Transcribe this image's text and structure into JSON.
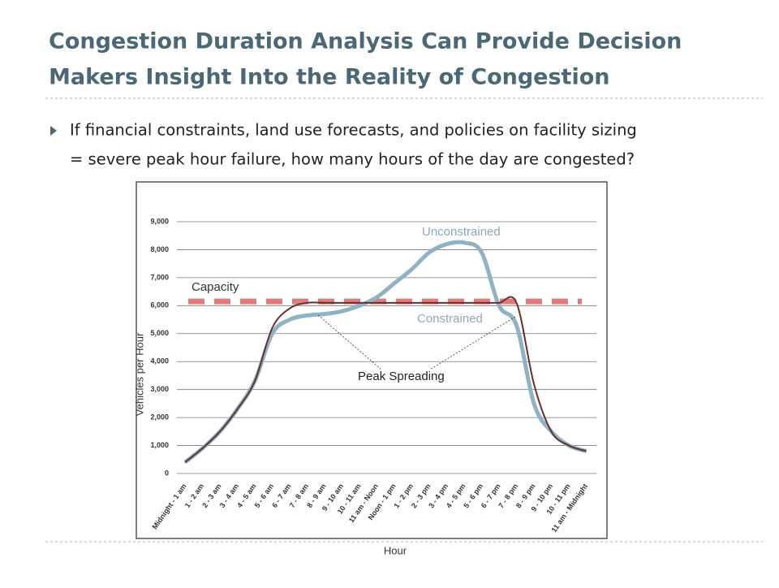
{
  "slide": {
    "title_lines": [
      "Congestion Duration Analysis Can Provide Decision",
      "Makers Insight Into the Reality of Congestion"
    ],
    "bullet_lines": [
      "If financial constraints, land use forecasts, and policies on facility sizing",
      "= severe peak hour failure, how many hours of the day are congested?"
    ]
  },
  "chart_data": {
    "type": "line",
    "x_label": "Hour",
    "y_label": "Vehicles per Hour",
    "categories": [
      "Midnight - 1 am",
      "1 - 2 am",
      "2 - 3 am",
      "3 - 4 am",
      "4 - 5 am",
      "5 - 6 am",
      "6 - 7 am",
      "7 - 8 am",
      "8 - 9 am",
      "9 - 10 am",
      "10 - 11 am",
      "11 am - Noon",
      "Noon - 1 pm",
      "1 - 2 pm",
      "2 - 3 pm",
      "3 - 4 pm",
      "4 - 5 pm",
      "5 - 6 pm",
      "6 - 7 pm",
      "7 - 8 pm",
      "8 - 9 pm",
      "9 - 10 pm",
      "10 - 11 pm",
      "11 am - Midnight"
    ],
    "series": [
      {
        "name": "Unconstrained",
        "color": "#8fb3c4",
        "values": [
          400,
          900,
          1500,
          2300,
          3300,
          5000,
          5500,
          5650,
          5700,
          5800,
          6000,
          6300,
          6800,
          7300,
          7900,
          8200,
          8250,
          7900,
          6000,
          5300,
          2500,
          1500,
          1000,
          800
        ]
      },
      {
        "name": "Constrained",
        "color": "#6b2e2e",
        "values": [
          400,
          900,
          1500,
          2300,
          3300,
          5200,
          5900,
          6100,
          6100,
          6100,
          6100,
          6100,
          6100,
          6100,
          6100,
          6100,
          6100,
          6100,
          6100,
          6100,
          3200,
          1500,
          1000,
          800
        ]
      }
    ],
    "capacity": {
      "label": "Capacity",
      "value": 6150,
      "color": "#e07b7b"
    },
    "annotation": "Peak Spreading",
    "ylim": [
      0,
      9000
    ],
    "yticks": [
      0,
      {
        "value": 1000,
        "label": "1,000"
      },
      {
        "value": 2000,
        "label": "2,000"
      },
      {
        "value": 3000,
        "label": "3,000"
      },
      {
        "value": 4000,
        "label": "4,000"
      },
      {
        "value": 5000,
        "label": "5,000"
      },
      {
        "value": 6000,
        "label": "6,000"
      },
      {
        "value": 7000,
        "label": "7,000"
      },
      {
        "value": 8000,
        "label": "8,000"
      },
      {
        "value": 9000,
        "label": "9,000"
      }
    ],
    "grid": true
  }
}
